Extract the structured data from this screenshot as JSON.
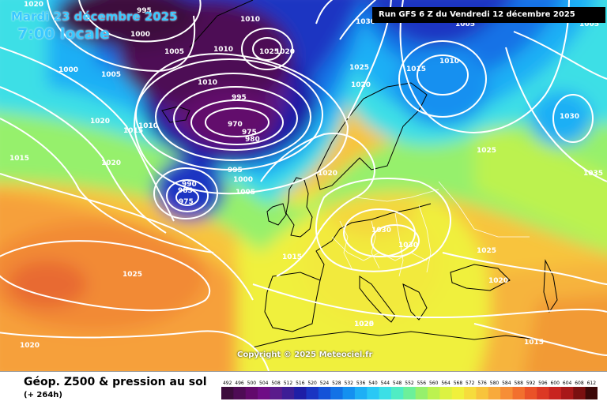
{
  "header": {
    "date": "Mardi 23 décembre 2025",
    "time": "7:00 locale",
    "run": "Run GFS 6 Z du Vendredi 12 décembre 2025"
  },
  "copyright": "Copyright © 2025 Meteociel.fr",
  "footer": {
    "title": "Géop. Z500 & pression au sol",
    "subtitle": "(+ 264h)"
  },
  "legend": {
    "values": [
      "492",
      "496",
      "500",
      "504",
      "508",
      "512",
      "516",
      "520",
      "524",
      "528",
      "532",
      "536",
      "540",
      "544",
      "548",
      "552",
      "556",
      "560",
      "564",
      "568",
      "572",
      "576",
      "580",
      "584",
      "588",
      "592",
      "596",
      "600",
      "604",
      "608",
      "612"
    ],
    "colors": [
      "#3c0c3c",
      "#4e0b55",
      "#62096c",
      "#6f0d86",
      "#5a1c8c",
      "#3c1e96",
      "#1e1ea6",
      "#1a35c2",
      "#1452d8",
      "#1272e6",
      "#1490f0",
      "#1eaff5",
      "#2ac8f5",
      "#3cdfe6",
      "#50ecc4",
      "#6cf09a",
      "#96f06c",
      "#bcf250",
      "#dcf242",
      "#f0f03c",
      "#f6dc3c",
      "#f8c43c",
      "#f8aa3c",
      "#f68e36",
      "#f2702e",
      "#ea5228",
      "#dc3824",
      "#c82420",
      "#a81818",
      "#7a1010",
      "#3c0808"
    ]
  },
  "isobar_labels": [
    {
      "text": "1020"
    },
    {
      "text": "995"
    },
    {
      "text": "1000"
    },
    {
      "text": "1005"
    },
    {
      "text": "1010"
    },
    {
      "text": "1010"
    },
    {
      "text": "1025"
    },
    {
      "text": "1020"
    },
    {
      "text": "1030"
    },
    {
      "text": "1005"
    },
    {
      "text": "1000"
    },
    {
      "text": "1005"
    },
    {
      "text": "1010"
    },
    {
      "text": "1025"
    },
    {
      "text": "1020"
    },
    {
      "text": "1015"
    },
    {
      "text": "1005"
    },
    {
      "text": "1000"
    },
    {
      "text": "1020"
    },
    {
      "text": "1015"
    },
    {
      "text": "1010"
    },
    {
      "text": "1010"
    },
    {
      "text": "995"
    },
    {
      "text": "970"
    },
    {
      "text": "975"
    },
    {
      "text": "980"
    },
    {
      "text": "1030"
    },
    {
      "text": "1015"
    },
    {
      "text": "1020"
    },
    {
      "text": "995"
    },
    {
      "text": "1000"
    },
    {
      "text": "1005"
    },
    {
      "text": "990"
    },
    {
      "text": "985"
    },
    {
      "text": "975"
    },
    {
      "text": "1025"
    },
    {
      "text": "1020"
    },
    {
      "text": "1030"
    },
    {
      "text": "1030"
    },
    {
      "text": "1015"
    },
    {
      "text": "1025"
    },
    {
      "text": "1035"
    },
    {
      "text": "1025"
    },
    {
      "text": "1020"
    },
    {
      "text": "1025"
    },
    {
      "text": "1020"
    },
    {
      "text": "1020"
    },
    {
      "text": "1015"
    }
  ]
}
